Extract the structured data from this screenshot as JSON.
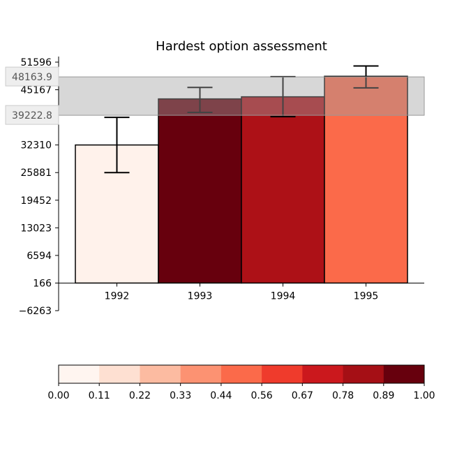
{
  "chart_data": {
    "type": "bar",
    "title": "Hardest option assessment",
    "categories": [
      "1992",
      "1993",
      "1994",
      "1995"
    ],
    "values": [
      32310,
      43040,
      43530,
      48300
    ],
    "error_bars": [
      {
        "low": 25881,
        "high": 38738
      },
      {
        "low": 39900,
        "high": 45700
      },
      {
        "low": 38900,
        "high": 48200
      },
      {
        "low": 45600,
        "high": 50700
      }
    ],
    "color_values": [
      0.02,
      1.0,
      0.85,
      0.5
    ],
    "ylim": [
      -6263,
      51596
    ],
    "yticks": [
      "51596",
      "45167",
      "38738",
      "32310",
      "25881",
      "19452",
      "13023",
      "6594",
      "166",
      "−6263"
    ],
    "ytick_values": [
      51596,
      45167,
      38738,
      32310,
      25881,
      19452,
      13023,
      6594,
      166,
      -6263
    ],
    "bar_baseline": 166,
    "band": {
      "low": 39222.8,
      "high": 48163.9,
      "low_label": "39222.8",
      "high_label": "48163.9"
    },
    "xlabel": "",
    "ylabel": "",
    "grid": false,
    "colorbar": {
      "colors": [
        "#fff5f0",
        "#fee0d2",
        "#fcbba1",
        "#fc9272",
        "#fb6a4a",
        "#ef3b2c",
        "#cb181d",
        "#a50f15",
        "#67000d"
      ],
      "ticks": [
        "0.00",
        "0.11",
        "0.22",
        "0.33",
        "0.44",
        "0.56",
        "0.67",
        "0.78",
        "0.89",
        "1.00"
      ],
      "range": [
        0,
        1
      ]
    }
  }
}
